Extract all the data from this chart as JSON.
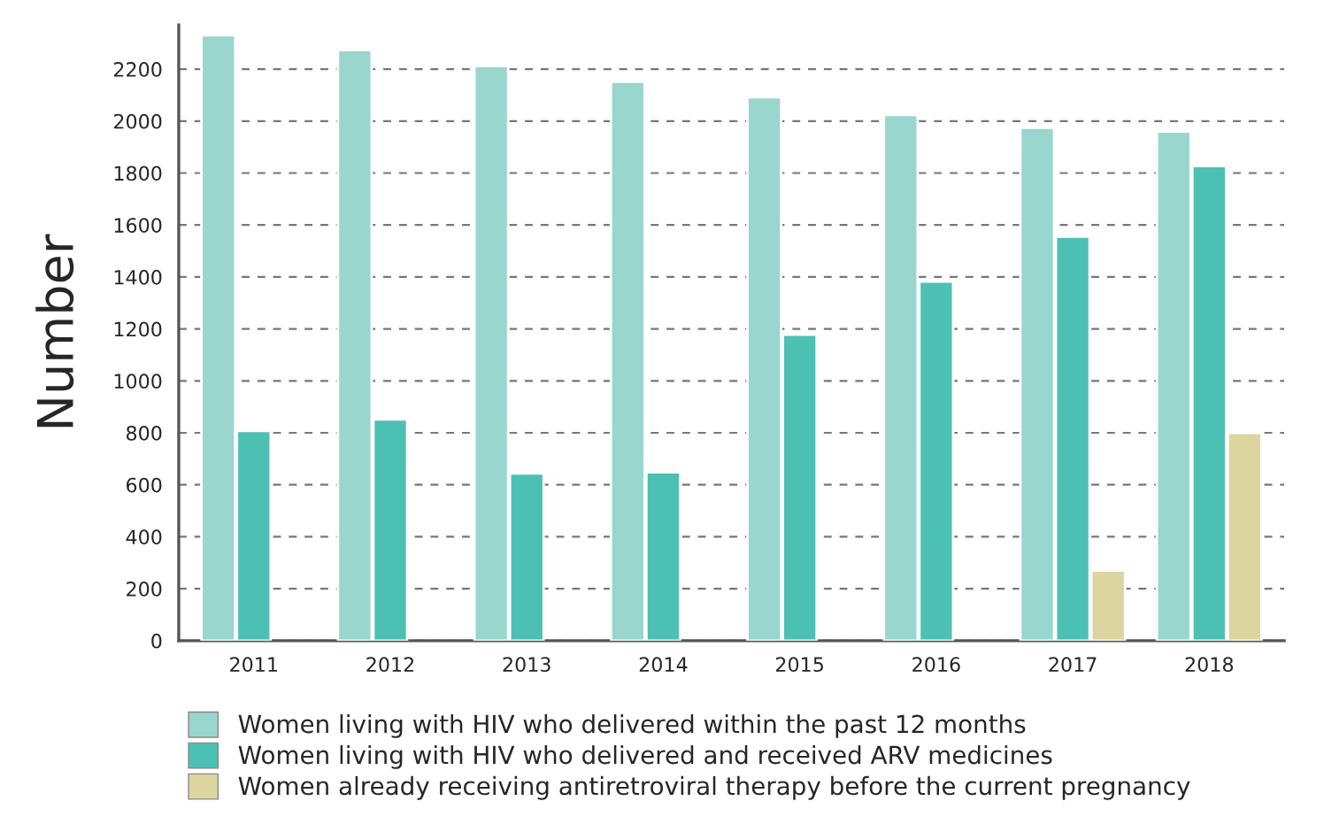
{
  "chart_data": {
    "type": "bar",
    "ylabel": "Number",
    "categories": [
      "2011",
      "2012",
      "2013",
      "2014",
      "2015",
      "2016",
      "2017",
      "2018"
    ],
    "series": [
      {
        "name": "Women living with HIV who delivered within the past 12 months",
        "color": "#98d6ce",
        "values": [
          2330,
          2273,
          2212,
          2151,
          2092,
          2024,
          1974,
          1960
        ]
      },
      {
        "name": "Women living with HIV who delivered and received ARV medicines",
        "color": "#4cc0b3",
        "values": [
          807,
          852,
          644,
          648,
          1178,
          1382,
          1555,
          1827
        ]
      },
      {
        "name": "Women already receiving antiretroviral therapy before the current pregnancy",
        "color": "#dcd59f",
        "values": [
          null,
          null,
          null,
          null,
          null,
          null,
          270,
          800
        ]
      }
    ],
    "ylim": [
      0,
      2370
    ],
    "yticks": [
      0,
      200,
      400,
      600,
      800,
      1000,
      1200,
      1400,
      1600,
      1800,
      2000,
      2200
    ],
    "grid": "y",
    "legend": "bottom"
  }
}
